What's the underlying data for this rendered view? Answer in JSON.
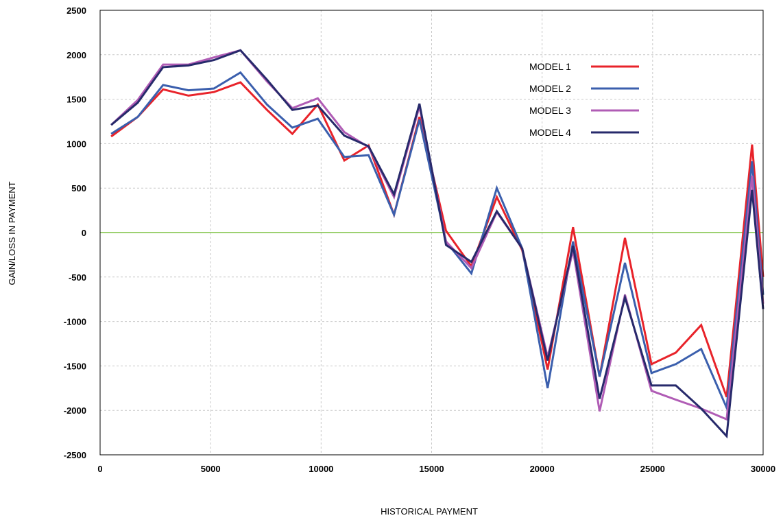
{
  "chart_data": {
    "type": "line",
    "title": "",
    "xlabel": "HISTORICAL PAYMENT",
    "ylabel": "GAIN/LOSS IN PAYMENT",
    "xlim": [
      0,
      30000
    ],
    "ylim": [
      -2500,
      2500
    ],
    "xticks": [
      0,
      5000,
      10000,
      15000,
      20000,
      25000,
      30000
    ],
    "yticks": [
      -2500,
      -2000,
      -1500,
      -1000,
      -500,
      0,
      500,
      1000,
      1500,
      2000,
      2500
    ],
    "grid": true,
    "legend_position": "top-right",
    "reference_line": {
      "y": 0,
      "color": "#7dc242"
    },
    "x": [
      500,
      1700,
      2850,
      4000,
      5150,
      6350,
      7550,
      8700,
      9850,
      11050,
      12150,
      13300,
      14450,
      15650,
      16800,
      17950,
      19100,
      20250,
      21400,
      22600,
      23750,
      24950,
      26050,
      27200,
      28350,
      29500,
      30000
    ],
    "series": [
      {
        "name": "MODEL 1",
        "color": "#e8232a",
        "values": [
          1080,
          1300,
          1610,
          1540,
          1580,
          1690,
          1380,
          1110,
          1440,
          810,
          980,
          200,
          1300,
          20,
          -380,
          400,
          -200,
          -1540,
          60,
          -1620,
          -60,
          -1480,
          -1350,
          -1040,
          -1850,
          990,
          -500
        ]
      },
      {
        "name": "MODEL 2",
        "color": "#3b5fad",
        "values": [
          1110,
          1300,
          1660,
          1600,
          1620,
          1800,
          1440,
          1180,
          1280,
          850,
          870,
          200,
          1270,
          -100,
          -460,
          500,
          -180,
          -1750,
          -100,
          -1620,
          -340,
          -1580,
          -1480,
          -1310,
          -1970,
          800,
          -700
        ]
      },
      {
        "name": "MODEL 3",
        "color": "#b05cb5",
        "values": [
          1210,
          1490,
          1890,
          1890,
          1970,
          2050,
          1700,
          1400,
          1510,
          1130,
          960,
          400,
          1420,
          -100,
          -400,
          230,
          -180,
          -1400,
          -200,
          -2010,
          -700,
          -1780,
          -1880,
          -1980,
          -2100,
          640,
          -800
        ]
      },
      {
        "name": "MODEL 4",
        "color": "#272a6b",
        "values": [
          1210,
          1460,
          1860,
          1880,
          1940,
          2050,
          1720,
          1380,
          1430,
          1090,
          970,
          430,
          1450,
          -140,
          -330,
          240,
          -180,
          -1440,
          -150,
          -1870,
          -730,
          -1720,
          -1720,
          -1980,
          -2290,
          480,
          -860
        ]
      }
    ]
  }
}
